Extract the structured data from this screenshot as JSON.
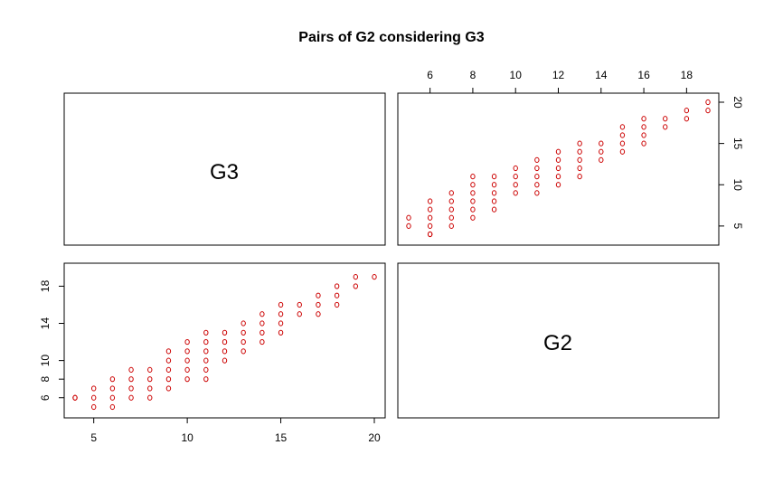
{
  "chart_data": {
    "type": "scatter",
    "kind": "pairs",
    "title": "Pairs of G2 considering G3",
    "variables": [
      "G3",
      "G2"
    ],
    "point_color": "#cc0000",
    "marker": "open-circle",
    "axes": {
      "G3": {
        "ticks_top": [
          6,
          8,
          10,
          12,
          14,
          16,
          18
        ],
        "ticks_left": [
          6,
          8,
          10,
          14,
          18
        ],
        "range": [
          4,
          19.5
        ]
      },
      "G2": {
        "ticks_bottom": [
          5,
          10,
          15,
          20
        ],
        "ticks_right": [
          5,
          10,
          15,
          20
        ],
        "range": [
          3.5,
          20.5
        ]
      }
    },
    "points": [
      {
        "g2": 5,
        "g3": 5
      },
      {
        "g2": 6,
        "g3": 5
      },
      {
        "g2": 4,
        "g3": 6
      },
      {
        "g2": 4,
        "g3": 6
      },
      {
        "g2": 5,
        "g3": 6
      },
      {
        "g2": 6,
        "g3": 6
      },
      {
        "g2": 7,
        "g3": 6
      },
      {
        "g2": 8,
        "g3": 6
      },
      {
        "g2": 5,
        "g3": 7
      },
      {
        "g2": 6,
        "g3": 7
      },
      {
        "g2": 7,
        "g3": 7
      },
      {
        "g2": 8,
        "g3": 7
      },
      {
        "g2": 9,
        "g3": 7
      },
      {
        "g2": 6,
        "g3": 8
      },
      {
        "g2": 7,
        "g3": 8
      },
      {
        "g2": 8,
        "g3": 8
      },
      {
        "g2": 9,
        "g3": 8
      },
      {
        "g2": 10,
        "g3": 8
      },
      {
        "g2": 11,
        "g3": 8
      },
      {
        "g2": 7,
        "g3": 9
      },
      {
        "g2": 8,
        "g3": 9
      },
      {
        "g2": 9,
        "g3": 9
      },
      {
        "g2": 10,
        "g3": 9
      },
      {
        "g2": 11,
        "g3": 9
      },
      {
        "g2": 9,
        "g3": 10
      },
      {
        "g2": 10,
        "g3": 10
      },
      {
        "g2": 11,
        "g3": 10
      },
      {
        "g2": 12,
        "g3": 10
      },
      {
        "g2": 9,
        "g3": 11
      },
      {
        "g2": 10,
        "g3": 11
      },
      {
        "g2": 11,
        "g3": 11
      },
      {
        "g2": 12,
        "g3": 11
      },
      {
        "g2": 13,
        "g3": 11
      },
      {
        "g2": 10,
        "g3": 12
      },
      {
        "g2": 11,
        "g3": 12
      },
      {
        "g2": 12,
        "g3": 12
      },
      {
        "g2": 13,
        "g3": 12
      },
      {
        "g2": 14,
        "g3": 12
      },
      {
        "g2": 11,
        "g3": 13
      },
      {
        "g2": 12,
        "g3": 13
      },
      {
        "g2": 13,
        "g3": 13
      },
      {
        "g2": 14,
        "g3": 13
      },
      {
        "g2": 15,
        "g3": 13
      },
      {
        "g2": 13,
        "g3": 14
      },
      {
        "g2": 14,
        "g3": 14
      },
      {
        "g2": 15,
        "g3": 14
      },
      {
        "g2": 14,
        "g3": 15
      },
      {
        "g2": 15,
        "g3": 15
      },
      {
        "g2": 16,
        "g3": 15
      },
      {
        "g2": 17,
        "g3": 15
      },
      {
        "g2": 15,
        "g3": 16
      },
      {
        "g2": 16,
        "g3": 16
      },
      {
        "g2": 17,
        "g3": 16
      },
      {
        "g2": 18,
        "g3": 16
      },
      {
        "g2": 17,
        "g3": 17
      },
      {
        "g2": 18,
        "g3": 17
      },
      {
        "g2": 18,
        "g3": 18
      },
      {
        "g2": 19,
        "g3": 18
      },
      {
        "g2": 19,
        "g3": 19
      },
      {
        "g2": 20,
        "g3": 19
      }
    ]
  }
}
